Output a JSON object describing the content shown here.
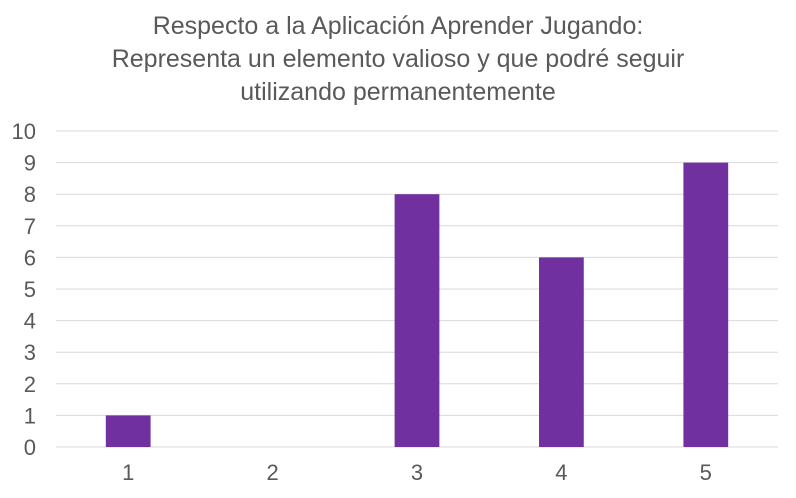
{
  "chart_data": {
    "type": "bar",
    "title_lines": [
      "Respecto a la Aplicación Aprender Jugando:",
      "Representa un elemento valioso y que podré seguir",
      "utilizando permanentemente"
    ],
    "categories": [
      "1",
      "2",
      "3",
      "4",
      "5"
    ],
    "values": [
      1,
      0,
      8,
      6,
      9
    ],
    "ylim": [
      0,
      10
    ],
    "yticks": [
      "0",
      "1",
      "2",
      "3",
      "4",
      "5",
      "6",
      "7",
      "8",
      "9",
      "10"
    ],
    "xlabel": "",
    "ylabel": "",
    "grid": true,
    "legend": "none",
    "bar_color": "#7030a0"
  }
}
